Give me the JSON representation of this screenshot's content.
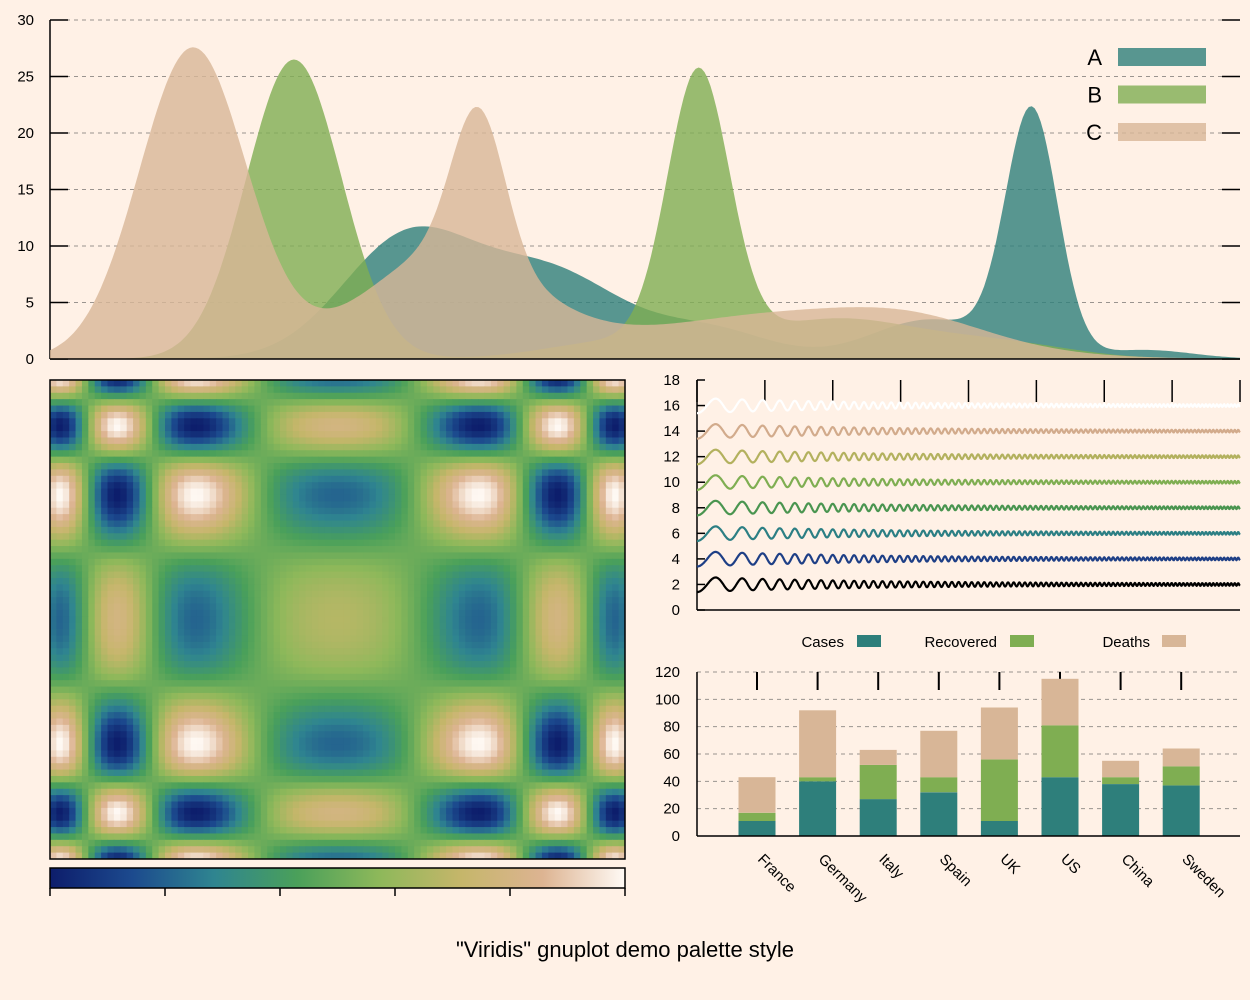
{
  "page": {
    "caption": "\"Viridis\" gnuplot demo palette style",
    "background": "#fff1e6"
  },
  "palette": {
    "teal": "#2e7f7b",
    "green": "#7fae52",
    "tan": "#d8b697",
    "viridis_stops": [
      "#0d1d6b",
      "#1c4a8e",
      "#2f8590",
      "#4aa05a",
      "#8db85a",
      "#c5b66a",
      "#ddb492",
      "#fffaf5"
    ]
  },
  "chart_data": [
    {
      "type": "area",
      "ylim": [
        0,
        30
      ],
      "yticks": [
        0,
        5,
        10,
        15,
        20,
        25,
        30
      ],
      "grid": true,
      "legend_position": "top-right",
      "series": [
        {
          "name": "A",
          "color": "#2e7f7b",
          "components": [
            {
              "mu": 0.3,
              "sigma": 0.055,
              "amp": 10.5
            },
            {
              "mu": 0.42,
              "sigma": 0.06,
              "amp": 7.5
            },
            {
              "mu": 0.555,
              "sigma": 0.05,
              "amp": 2.5
            },
            {
              "mu": 0.74,
              "sigma": 0.05,
              "amp": 3.5
            },
            {
              "mu": 0.825,
              "sigma": 0.022,
              "amp": 21.5
            },
            {
              "mu": 0.92,
              "sigma": 0.04,
              "amp": 0.8
            }
          ]
        },
        {
          "name": "B",
          "color": "#7fae52",
          "components": [
            {
              "mu": 0.205,
              "sigma": 0.04,
              "amp": 26.5
            },
            {
              "mu": 0.48,
              "sigma": 0.06,
              "amp": 1.6
            },
            {
              "mu": 0.545,
              "sigma": 0.026,
              "amp": 24
            },
            {
              "mu": 0.66,
              "sigma": 0.07,
              "amp": 3.5
            },
            {
              "mu": 0.8,
              "sigma": 0.06,
              "amp": 1.3
            }
          ]
        },
        {
          "name": "C",
          "color": "#d8b697",
          "components": [
            {
              "mu": 0.12,
              "sigma": 0.045,
              "amp": 27.5
            },
            {
              "mu": 0.335,
              "sigma": 0.07,
              "amp": 9.5
            },
            {
              "mu": 0.36,
              "sigma": 0.022,
              "amp": 13
            },
            {
              "mu": 0.62,
              "sigma": 0.12,
              "amp": 4
            },
            {
              "mu": 0.73,
              "sigma": 0.06,
              "amp": 1.5
            }
          ]
        }
      ]
    },
    {
      "type": "heatmap",
      "colorbar_ticks": 6
    },
    {
      "type": "line",
      "ylim": [
        0,
        18
      ],
      "yticks": [
        0,
        2,
        4,
        6,
        8,
        10,
        12,
        14,
        16,
        18
      ],
      "series": [
        {
          "offset": 2,
          "color": "#000000"
        },
        {
          "offset": 4,
          "color": "#1e3f86"
        },
        {
          "offset": 6,
          "color": "#2c7f84"
        },
        {
          "offset": 8,
          "color": "#4a9550"
        },
        {
          "offset": 10,
          "color": "#7fae52"
        },
        {
          "offset": 12,
          "color": "#b3b15e"
        },
        {
          "offset": 14,
          "color": "#d2ab8c"
        },
        {
          "offset": 16,
          "color": "#ffffff"
        }
      ]
    },
    {
      "type": "bar",
      "stacked": true,
      "ylim": [
        0,
        120
      ],
      "yticks": [
        0,
        20,
        40,
        60,
        80,
        100,
        120
      ],
      "grid": true,
      "categories": [
        "France",
        "Germany",
        "Italy",
        "Spain",
        "UK",
        "US",
        "China",
        "Sweden"
      ],
      "series": [
        {
          "name": "Cases",
          "color": "#2e7f7b",
          "values": [
            11,
            40,
            27,
            32,
            11,
            43,
            38,
            37
          ]
        },
        {
          "name": "Recovered",
          "color": "#7fae52",
          "values": [
            6,
            3,
            25,
            11,
            45,
            38,
            5,
            14
          ]
        },
        {
          "name": "Deaths",
          "color": "#d8b697",
          "values": [
            26,
            49,
            11,
            34,
            38,
            34,
            12,
            13
          ]
        }
      ]
    }
  ]
}
